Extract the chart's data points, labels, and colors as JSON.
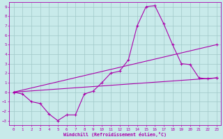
{
  "xlabel": "Windchill (Refroidissement éolien,°C)",
  "background_color": "#c8eaea",
  "grid_color": "#a0c8c8",
  "line_color": "#aa00aa",
  "xlim": [
    -0.5,
    23.5
  ],
  "ylim": [
    -3.5,
    9.5
  ],
  "xticks": [
    0,
    1,
    2,
    3,
    4,
    5,
    6,
    7,
    8,
    9,
    10,
    11,
    12,
    13,
    14,
    15,
    16,
    17,
    18,
    19,
    20,
    21,
    22,
    23
  ],
  "yticks": [
    -3,
    -2,
    -1,
    0,
    1,
    2,
    3,
    4,
    5,
    6,
    7,
    8,
    9
  ],
  "line1_x": [
    0,
    1,
    2,
    3,
    4,
    5,
    6,
    7,
    8,
    9,
    10,
    11,
    12,
    13,
    14,
    15,
    16,
    17,
    18,
    19,
    20,
    21,
    22,
    23
  ],
  "line1_y": [
    0.0,
    -0.2,
    -1.0,
    -1.2,
    -2.3,
    -3.0,
    -2.4,
    -2.4,
    -0.2,
    0.1,
    1.0,
    2.0,
    2.2,
    3.4,
    7.0,
    9.0,
    9.1,
    7.2,
    5.0,
    3.0,
    2.9,
    1.5,
    1.4,
    1.5
  ],
  "line2_x": [
    0,
    23
  ],
  "line2_y": [
    0.0,
    5.0
  ],
  "line3_x": [
    0,
    23
  ],
  "line3_y": [
    0.0,
    1.5
  ]
}
